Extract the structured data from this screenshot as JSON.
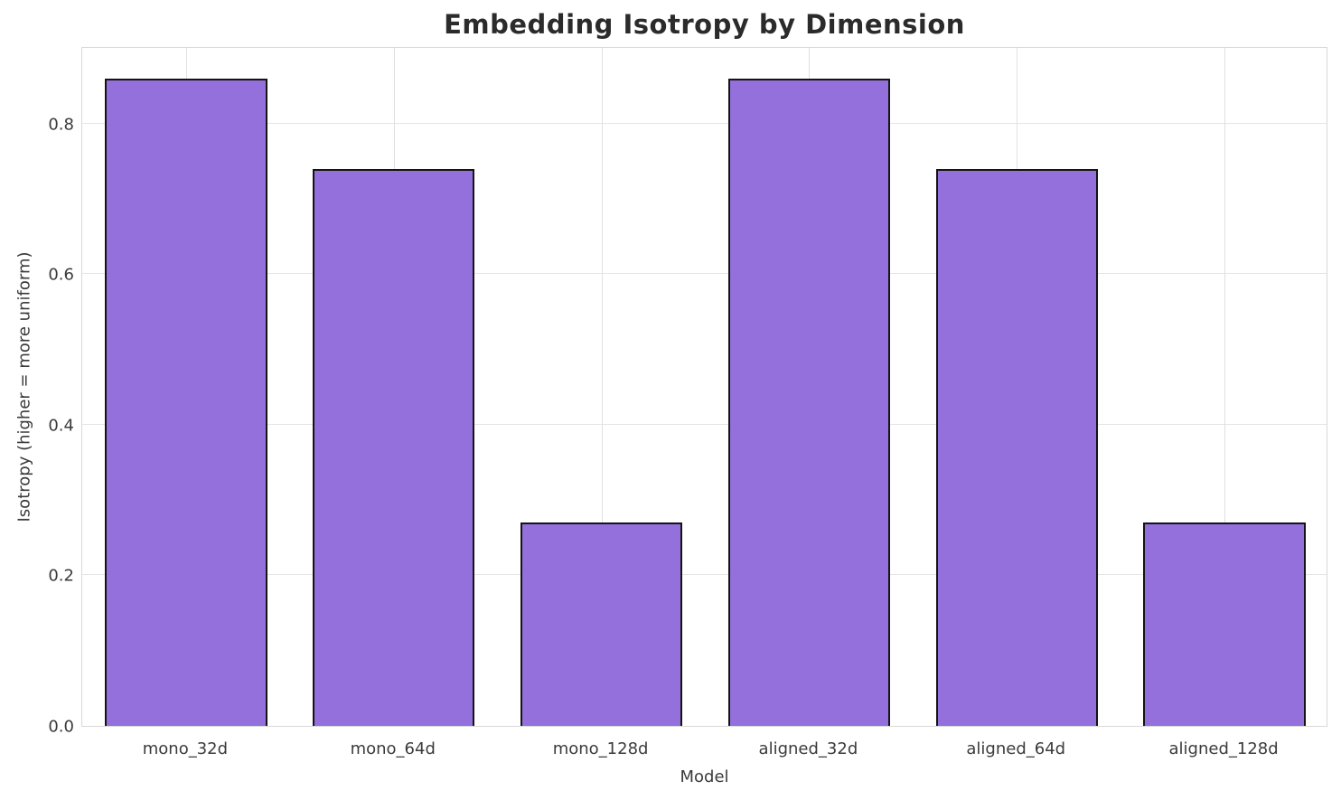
{
  "chart_data": {
    "type": "bar",
    "title": "Embedding Isotropy by Dimension",
    "xlabel": "Model",
    "ylabel": "Isotropy (higher = more uniform)",
    "categories": [
      "mono_32d",
      "mono_64d",
      "mono_128d",
      "aligned_32d",
      "aligned_64d",
      "aligned_128d"
    ],
    "values": [
      0.86,
      0.74,
      0.27,
      0.86,
      0.74,
      0.27
    ],
    "ylim": [
      0,
      0.903
    ],
    "yticks": [
      "0.0",
      "0.2",
      "0.4",
      "0.6",
      "0.8"
    ],
    "ytick_values": [
      0.0,
      0.2,
      0.4,
      0.6,
      0.8
    ],
    "grid": "on",
    "legend": "none",
    "bar_color": "#9370DB",
    "bar_edge_color": "#141414",
    "grid_color": "#e3e3e3",
    "bar_width_fraction": 0.78
  }
}
